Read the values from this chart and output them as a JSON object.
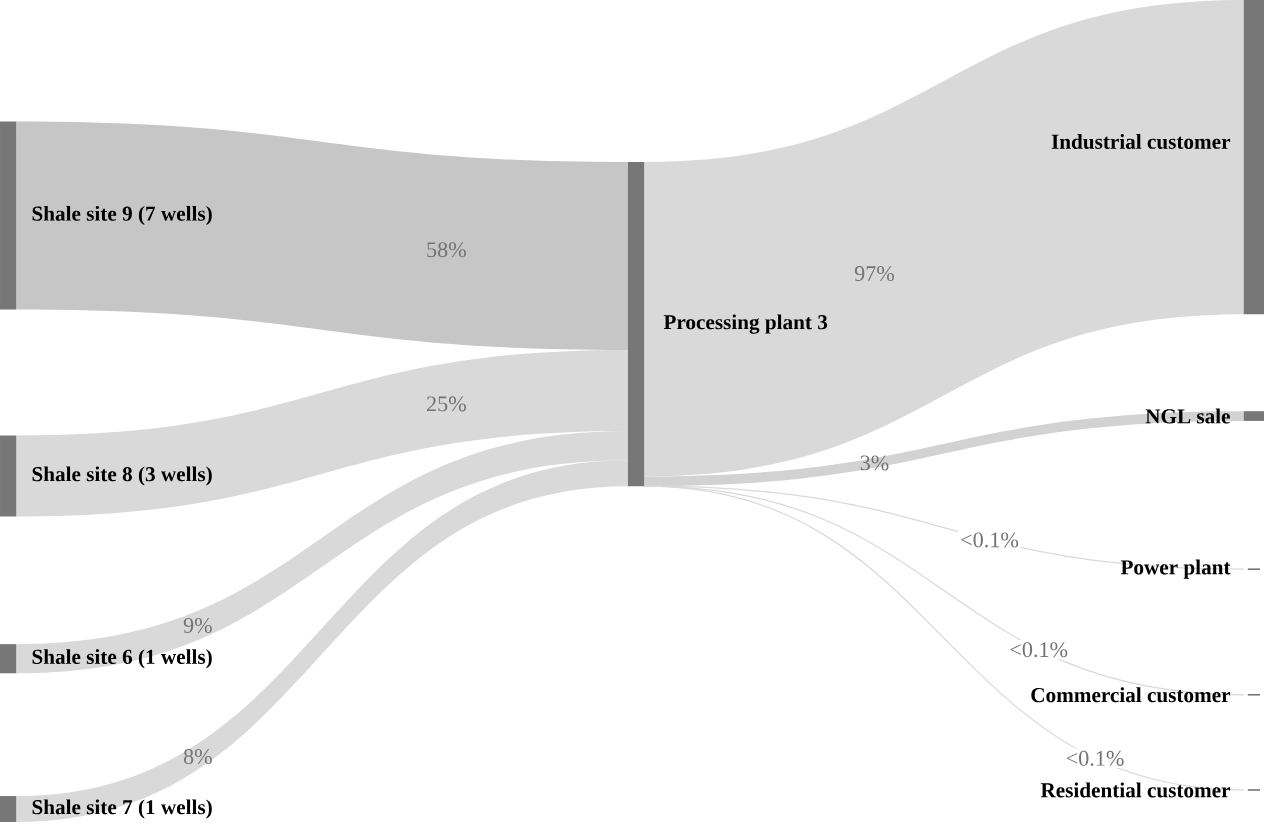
{
  "chart_data": {
    "type": "other",
    "categories": [
      "Shale site 9 (7 wells)",
      "Shale site 8 (3 wells)",
      "Shale site 6 (1 wells)",
      "Shale site 7 (1 wells)",
      "Industrial customer",
      "NGL sale",
      "Power plant",
      "Commercial customer",
      "Residential customer"
    ],
    "annotations": [
      "Processing plant 3"
    ],
    "series": [
      {
        "values": [
          58,
          25,
          9,
          8,
          null,
          null,
          null,
          null,
          null
        ],
        "value_labels": [
          "58%",
          "25%",
          "9%",
          "8%",
          null,
          null,
          null,
          null,
          null
        ],
        "colors": [
          "#c6c6c6",
          "#d9d9d9",
          "#d9d9d9",
          "#d9d9d9",
          null,
          null,
          null,
          null,
          null
        ]
      },
      {
        "values": [
          null,
          null,
          null,
          null,
          97,
          3,
          null,
          null,
          null
        ],
        "value_labels": [
          null,
          null,
          null,
          null,
          "97%",
          "3%",
          "<0.1%",
          "<0.1%",
          "<0.1%"
        ],
        "colors": [
          null,
          null,
          null,
          null,
          "#d9d9d9",
          "#d2d2d2",
          "#d9d9d9",
          "#d9d9d9",
          "#d9d9d9"
        ]
      }
    ]
  }
}
